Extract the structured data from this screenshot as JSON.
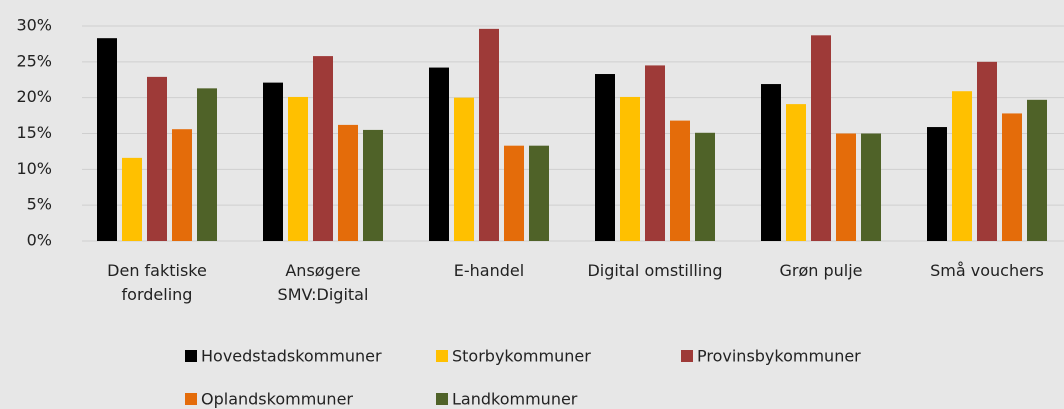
{
  "chart_data": {
    "type": "bar",
    "categories": [
      "Den faktiske\nfordeling",
      "Ansøgere\nSMV:Digital",
      "E-handel",
      "Digital omstilling",
      "Grøn pulje",
      "Små vouchers"
    ],
    "series": [
      {
        "name": "Hovedstadskommuner",
        "color": "#000000",
        "values": [
          28.3,
          22.1,
          24.2,
          23.3,
          21.9,
          15.9
        ]
      },
      {
        "name": "Storbykommuner",
        "color": "#ffc000",
        "values": [
          11.6,
          20.1,
          20.0,
          20.1,
          19.1,
          20.9
        ]
      },
      {
        "name": "Provinsbykommuner",
        "color": "#9e3a38",
        "values": [
          22.9,
          25.8,
          29.6,
          24.5,
          28.7,
          25.0
        ]
      },
      {
        "name": "Oplandskommuner",
        "color": "#e46c0a",
        "values": [
          15.6,
          16.2,
          13.3,
          16.8,
          15.0,
          17.8
        ]
      },
      {
        "name": "Landkommuner",
        "color": "#4f6228",
        "values": [
          21.3,
          15.5,
          13.3,
          15.1,
          15.0,
          19.7
        ]
      }
    ],
    "ylim": [
      0,
      30
    ],
    "yticks": [
      {
        "value": 0,
        "label": "0%"
      },
      {
        "value": 5,
        "label": "5%"
      },
      {
        "value": 10,
        "label": "10%"
      },
      {
        "value": 15,
        "label": "15%"
      },
      {
        "value": 20,
        "label": "20%"
      },
      {
        "value": 25,
        "label": "25%"
      },
      {
        "value": 30,
        "label": "30%"
      }
    ],
    "grid": true,
    "legend": "bottom"
  }
}
